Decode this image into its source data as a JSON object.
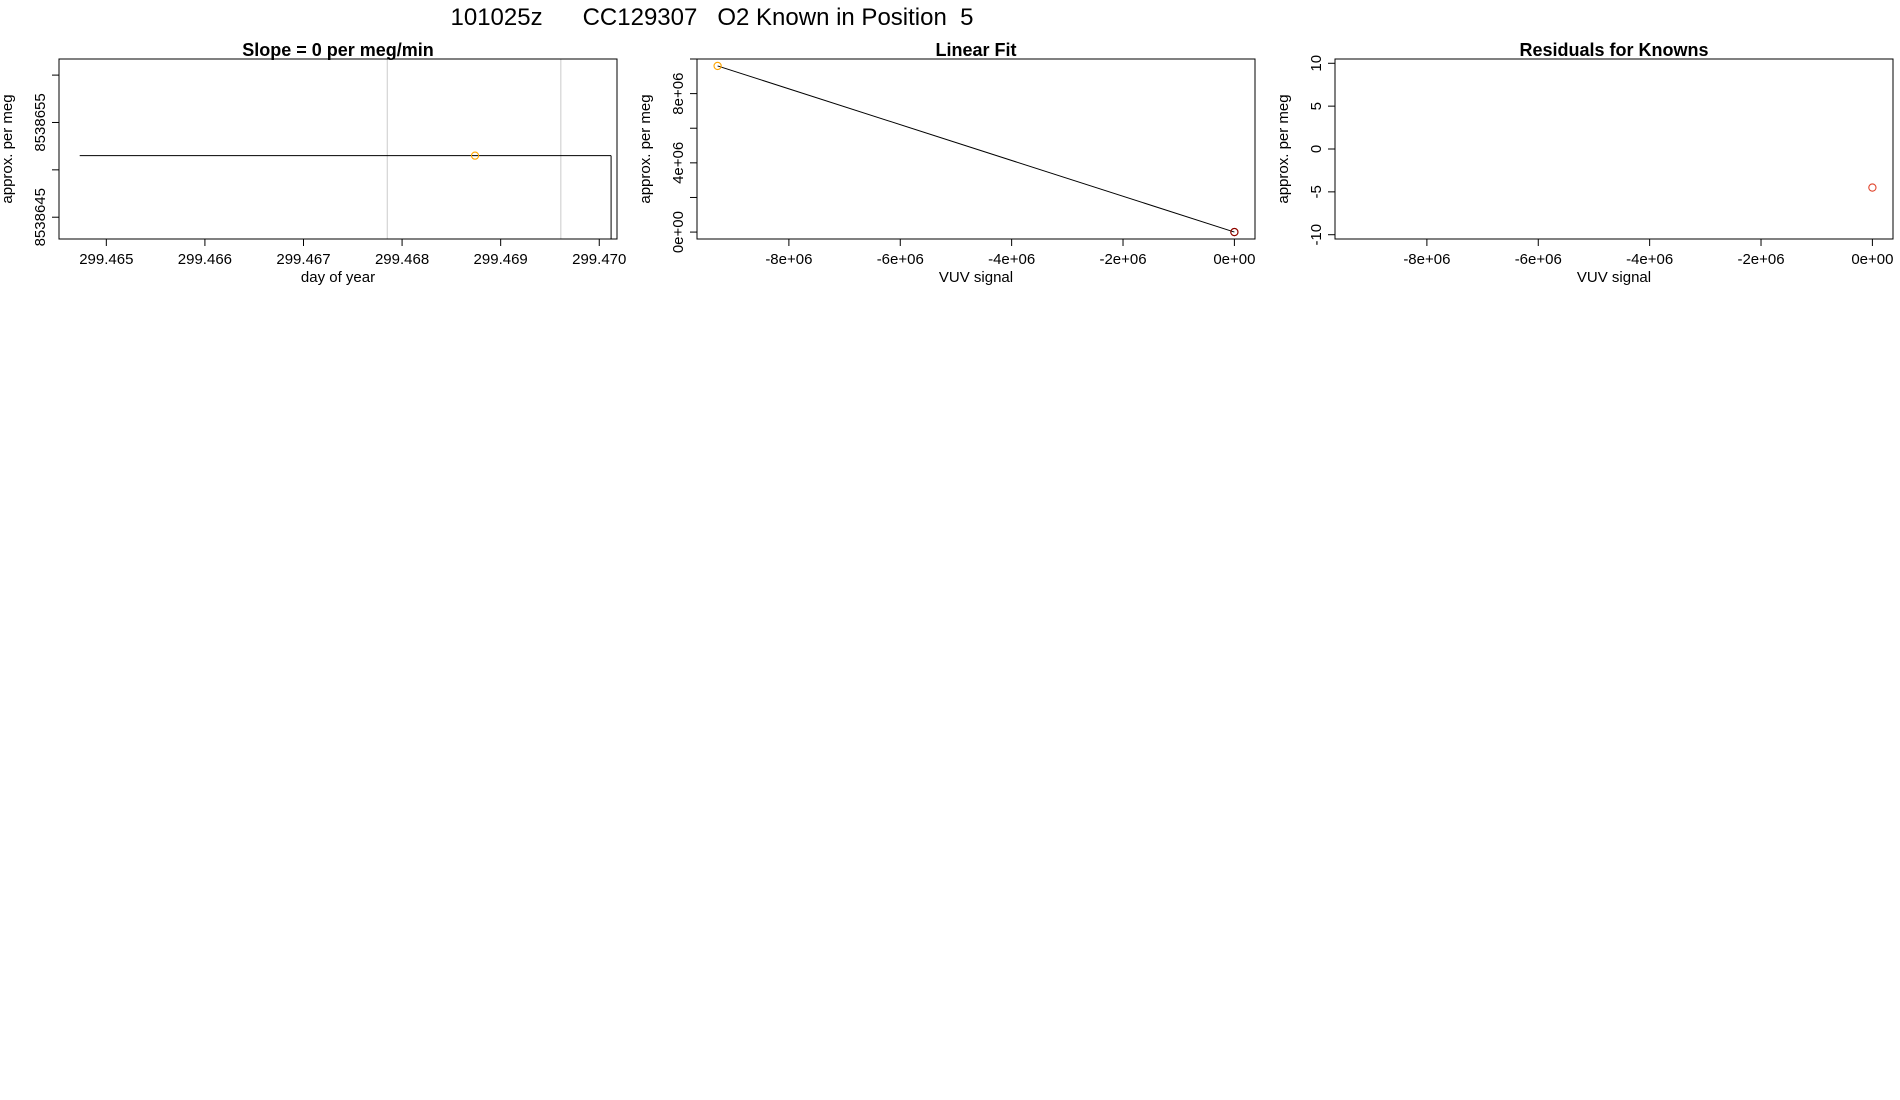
{
  "figure": {
    "title": "101025z      CC129307   O2 Known in Position  5"
  },
  "chart_data": [
    {
      "type": "scatter",
      "title": "Slope =  0  per meg/min",
      "xlabel": "day of year",
      "ylabel": "approx. per meg",
      "xlim": [
        299.46452,
        299.47018
      ],
      "ylim": [
        8538642.7,
        8538661.7
      ],
      "x_ticks": [
        299.465,
        299.466,
        299.467,
        299.468,
        299.469,
        299.47
      ],
      "x_tick_labels": [
        "299.465",
        "299.466",
        "299.467",
        "299.468",
        "299.469",
        "299.470"
      ],
      "y_ticks": [
        8538645,
        8538650,
        8538655,
        8538660
      ],
      "y_tick_labels": [
        "8538645",
        "",
        "8538655",
        ""
      ],
      "vlines": [
        299.46785,
        299.46961
      ],
      "vline_color": "#d3d3d3",
      "segments": [
        [
          [
            299.46473,
            8538651.5
          ],
          [
            299.47012,
            8538651.5
          ]
        ],
        [
          [
            299.47012,
            8538651.5
          ],
          [
            299.47012,
            8538642.7
          ]
        ]
      ],
      "points": [
        {
          "x": 299.46874,
          "y": 8538651.5,
          "color": "#ffa500"
        }
      ],
      "grid": false
    },
    {
      "type": "scatter",
      "title": "Linear Fit",
      "xlabel": "VUV signal",
      "ylabel": "approx. per meg",
      "xlim": [
        -9650000,
        370000
      ],
      "ylim": [
        -400000,
        10000000
      ],
      "x_ticks": [
        -8000000,
        -6000000,
        -4000000,
        -2000000,
        0
      ],
      "x_tick_labels": [
        "-8e+06",
        "-6e+06",
        "-4e+06",
        "-2e+06",
        "0e+00"
      ],
      "y_ticks": [
        0,
        2000000,
        4000000,
        6000000,
        8000000,
        10000000
      ],
      "y_tick_labels": [
        "0e+00",
        "",
        "4e+06",
        "",
        "8e+06",
        ""
      ],
      "fit_line": [
        [
          -9280000,
          9600000
        ],
        [
          0,
          0
        ]
      ],
      "points": [
        {
          "x": -9280000,
          "y": 9600000,
          "color": "#ffa500"
        },
        {
          "x": 0,
          "y": 0,
          "color": "#d2691e"
        },
        {
          "x": 0,
          "y": 0,
          "color": "#8b0000"
        }
      ],
      "grid": false
    },
    {
      "type": "scatter",
      "title": "Residuals for Knowns",
      "xlabel": "VUV signal",
      "ylabel": "approx. per meg",
      "xlim": [
        -9650000,
        370000
      ],
      "ylim": [
        -10.5,
        10.5
      ],
      "x_ticks": [
        -8000000,
        -6000000,
        -4000000,
        -2000000,
        0
      ],
      "x_tick_labels": [
        "-8e+06",
        "-6e+06",
        "-4e+06",
        "-2e+06",
        "0e+00"
      ],
      "y_ticks": [
        -10,
        -5,
        0,
        5,
        10
      ],
      "y_tick_labels": [
        "-10",
        "-5",
        "0",
        "5",
        "10"
      ],
      "points": [
        {
          "x": 0,
          "y": -4.5,
          "color": "#e0442c"
        }
      ],
      "grid": false
    }
  ]
}
